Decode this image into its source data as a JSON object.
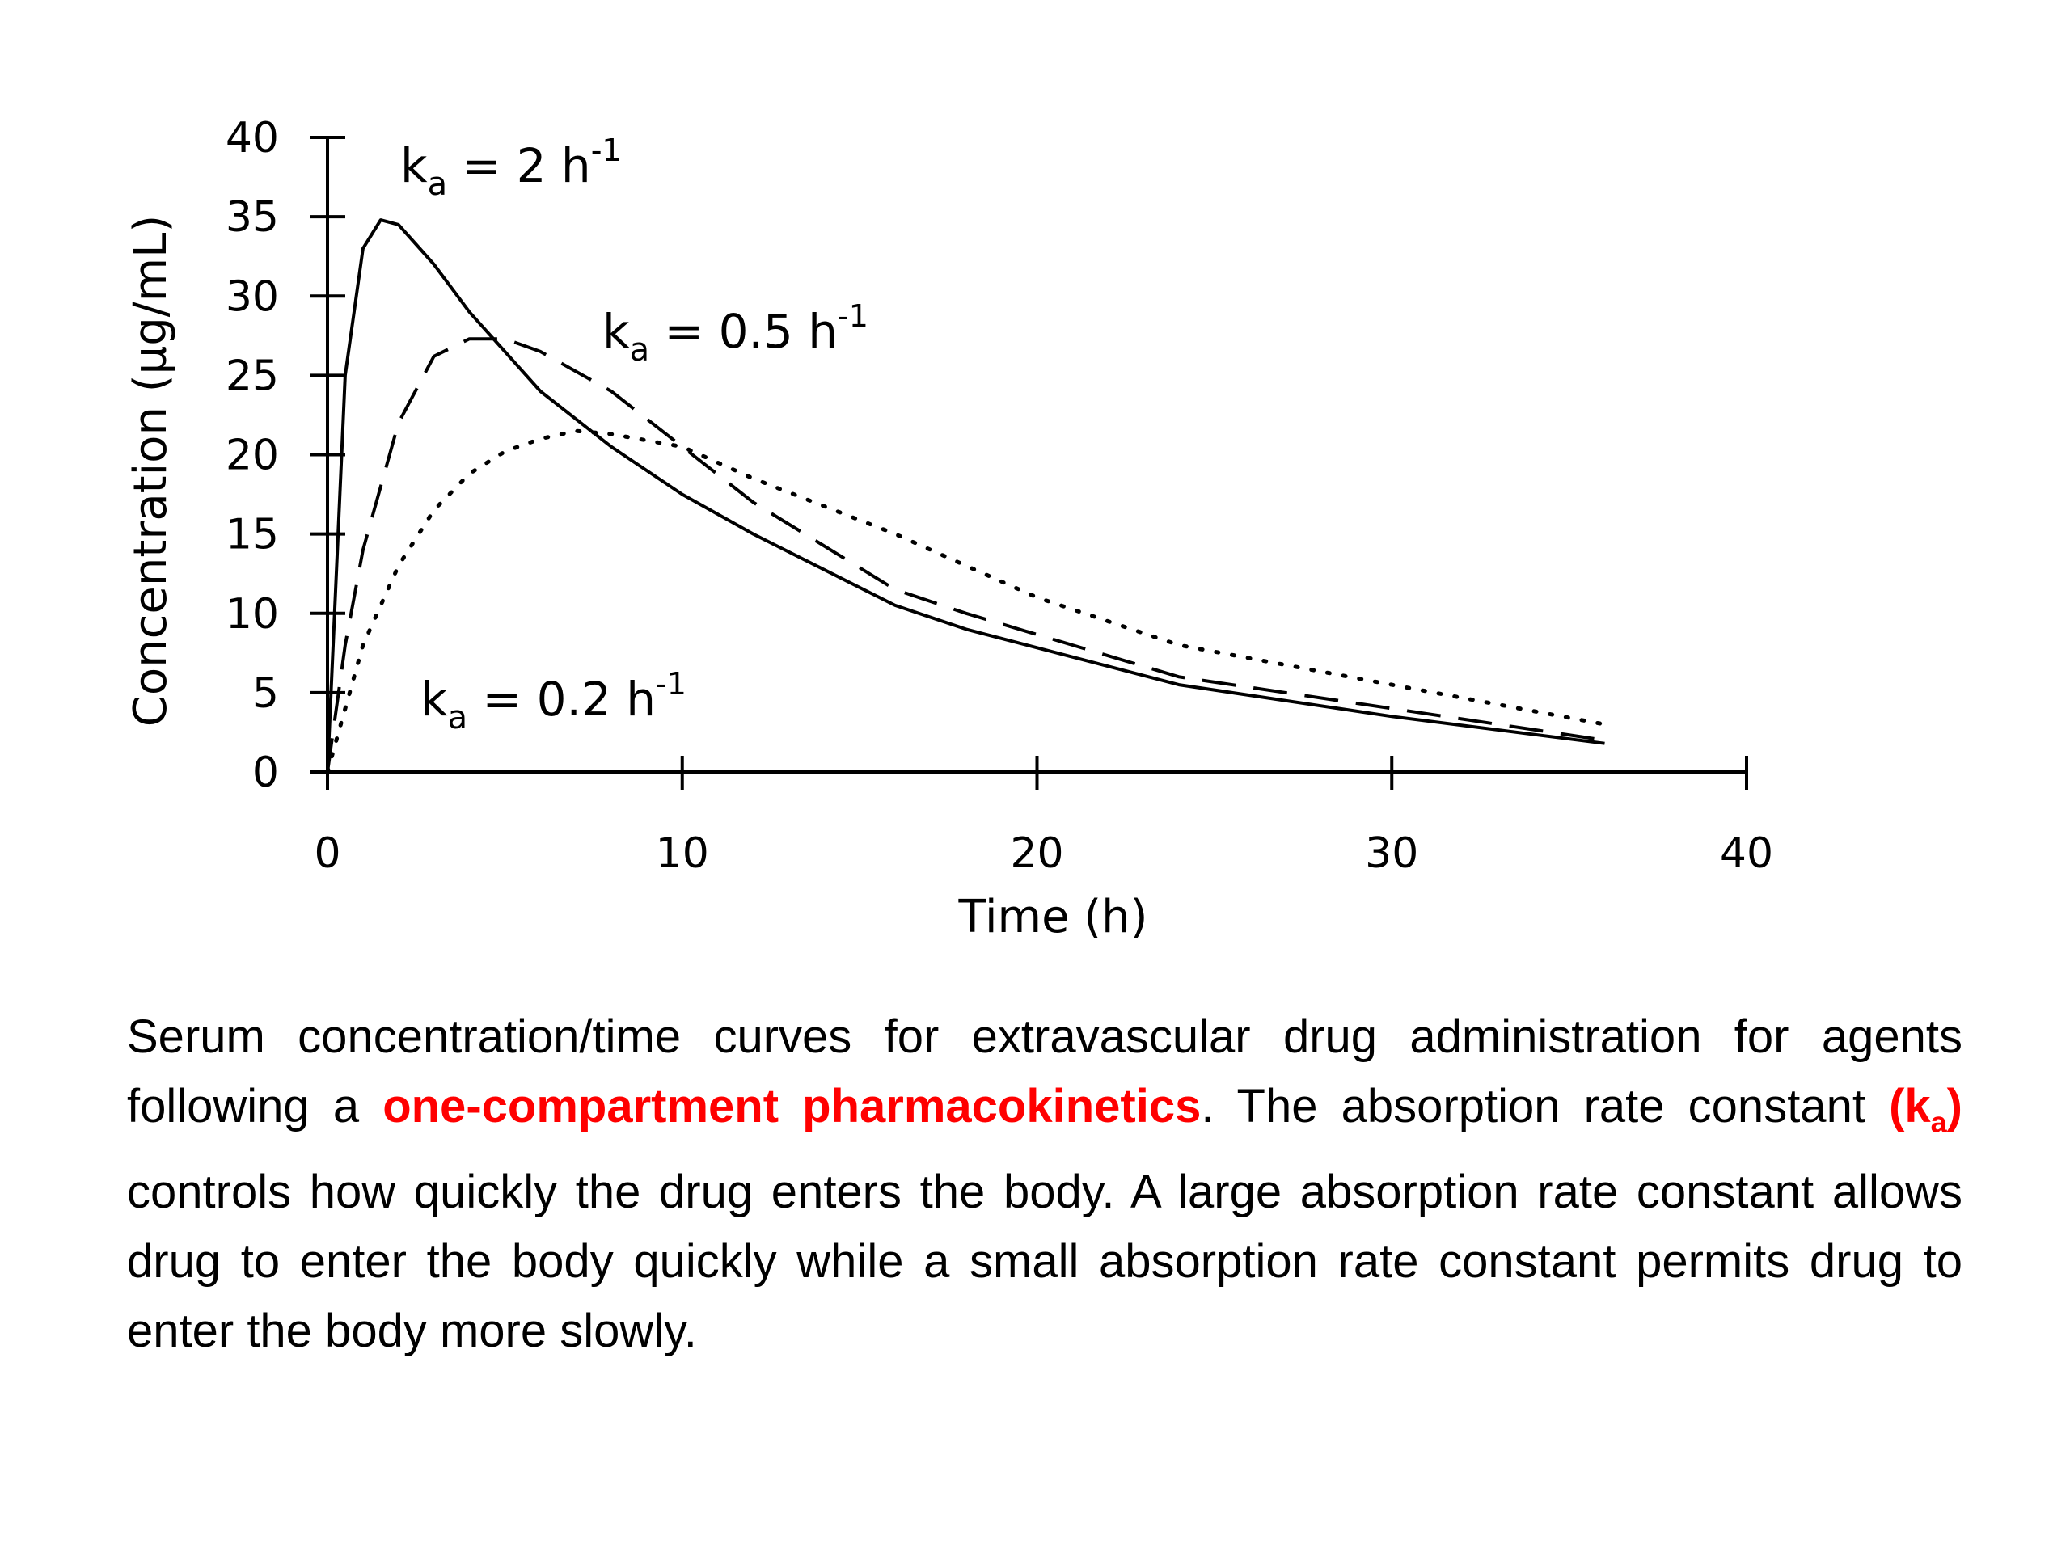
{
  "chart_data": {
    "type": "line",
    "xlabel": "Time (h)",
    "ylabel": "Concentration (µg/mL)",
    "xlim": [
      0,
      40
    ],
    "ylim": [
      0,
      40
    ],
    "xticks": [
      0,
      10,
      20,
      30,
      40
    ],
    "yticks": [
      0,
      5,
      10,
      15,
      20,
      25,
      30,
      35,
      40
    ],
    "grid": false,
    "legend": "none",
    "annotations": [
      {
        "base": "k",
        "sub": "a",
        "text": " = 2 h",
        "sup": "-1"
      },
      {
        "base": "k",
        "sub": "a",
        "text": " = 0.5 h",
        "sup": "-1"
      },
      {
        "base": "k",
        "sub": "a",
        "text": " = 0.2 h",
        "sup": "-1"
      }
    ],
    "series": [
      {
        "style": "solid",
        "x": [
          0,
          0.5,
          1,
          1.5,
          2,
          3,
          4,
          6,
          8,
          10,
          12,
          16,
          18,
          24,
          30,
          36
        ],
        "y": [
          0,
          25,
          33,
          34.8,
          34.5,
          32,
          29,
          24,
          20.5,
          17.5,
          15,
          10.5,
          9,
          5.5,
          3.5,
          1.8
        ]
      },
      {
        "style": "dashed",
        "x": [
          0,
          0.5,
          1,
          2,
          3,
          4,
          5,
          6,
          8,
          10,
          12,
          16,
          18,
          24,
          30,
          36
        ],
        "y": [
          0,
          8,
          14,
          22,
          26.2,
          27.3,
          27.3,
          26.5,
          24,
          20.5,
          17,
          11.5,
          10,
          6,
          4,
          2
        ]
      },
      {
        "style": "dotted",
        "x": [
          0,
          1,
          2,
          3,
          4,
          5,
          6,
          7,
          8,
          10,
          12,
          16,
          20,
          24,
          30,
          36
        ],
        "y": [
          0,
          8,
          13,
          16.5,
          18.8,
          20.2,
          21,
          21.5,
          21.3,
          20.5,
          18.5,
          15,
          11,
          8,
          5.5,
          3
        ]
      }
    ]
  },
  "caption": {
    "part1": "Serum concentration/time curves for extravascular drug administration for agents following a ",
    "highlight1": "one-compartment pharmacokinetics",
    "part2": ". The absorption rate constant ",
    "highlight2_open": "(k",
    "highlight2_sub": "a",
    "highlight2_close": ")",
    "part3": " controls how quickly the drug enters the body. A large absorption rate constant allows drug to enter the body quickly while a small absorption rate constant permits drug to enter the body more slowly."
  },
  "colors": {
    "highlight": "#ff0000",
    "line": "#000000",
    "background": "#ffffff"
  }
}
